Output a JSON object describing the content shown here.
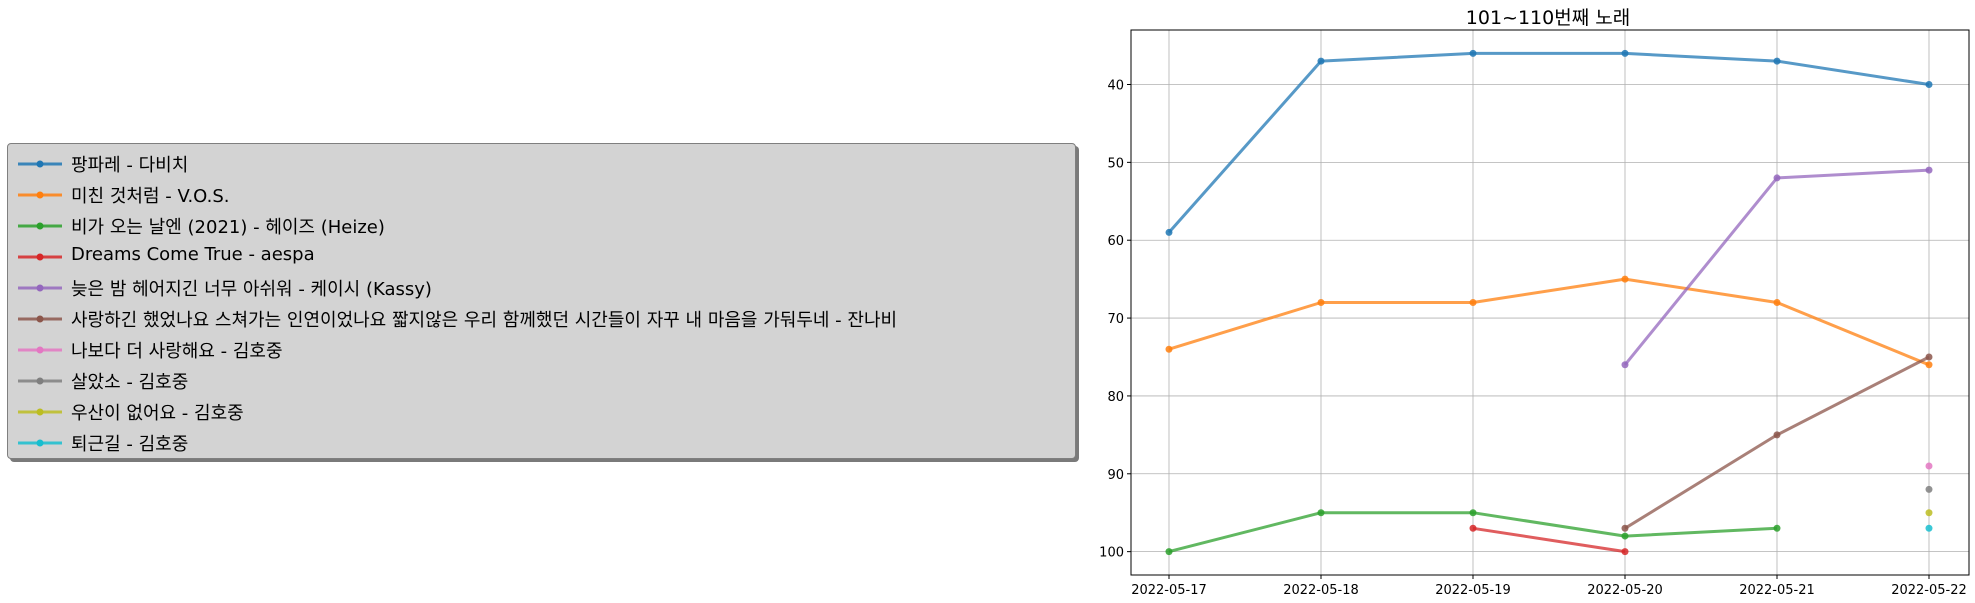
{
  "chart_data": {
    "type": "line",
    "title": "101~110번째 노래",
    "xlabel": "",
    "ylabel": "",
    "x": [
      "2022-05-17",
      "2022-05-18",
      "2022-05-19",
      "2022-05-20",
      "2022-05-21",
      "2022-05-22"
    ],
    "y_inverted": true,
    "ylim": [
      103,
      33
    ],
    "yticks": [
      40,
      50,
      60,
      70,
      80,
      90,
      100
    ],
    "grid": true,
    "legend_placement": "outside-left",
    "series": [
      {
        "name": "팡파레 - 다비치",
        "color": "#1f77b4",
        "values": [
          59,
          37,
          36,
          36,
          37,
          40
        ]
      },
      {
        "name": "미친 것처럼 - V.O.S.",
        "color": "#ff7f0e",
        "values": [
          74,
          68,
          68,
          65,
          68,
          76
        ]
      },
      {
        "name": "비가 오는 날엔 (2021) - 헤이즈 (Heize)",
        "color": "#2ca02c",
        "values": [
          100,
          95,
          95,
          98,
          97,
          null
        ]
      },
      {
        "name": "Dreams Come True - aespa",
        "color": "#d62728",
        "values": [
          null,
          null,
          97,
          100,
          null,
          null
        ]
      },
      {
        "name": "늦은 밤 헤어지긴 너무 아쉬워 - 케이시 (Kassy)",
        "color": "#9467bd",
        "values": [
          null,
          null,
          null,
          76,
          52,
          51
        ]
      },
      {
        "name": "사랑하긴 했었나요 스쳐가는 인연이었나요 짧지않은 우리 함께했던 시간들이 자꾸 내 마음을 가둬두네 - 잔나비",
        "color": "#8c564b",
        "values": [
          null,
          null,
          null,
          97,
          85,
          75
        ]
      },
      {
        "name": "나보다 더 사랑해요 - 김호중",
        "color": "#e377c2",
        "values": [
          null,
          null,
          null,
          null,
          null,
          89
        ]
      },
      {
        "name": "살았소 - 김호중",
        "color": "#7f7f7f",
        "values": [
          null,
          null,
          null,
          null,
          null,
          92
        ]
      },
      {
        "name": "우산이 없어요 - 김호중",
        "color": "#bcbd22",
        "values": [
          null,
          null,
          null,
          null,
          null,
          95
        ]
      },
      {
        "name": "퇴근길 - 김호중",
        "color": "#17becf",
        "values": [
          null,
          null,
          null,
          null,
          null,
          97
        ]
      }
    ]
  }
}
